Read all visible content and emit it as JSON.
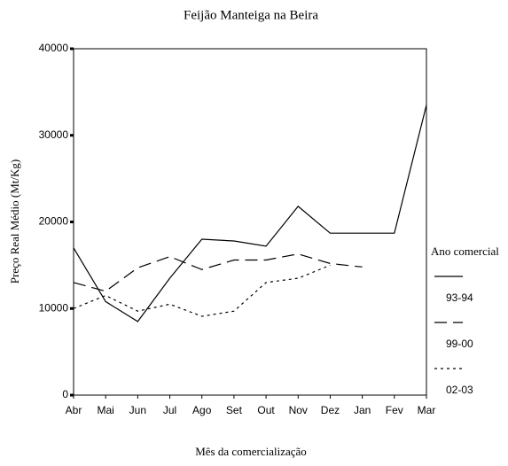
{
  "chart_data": {
    "type": "line",
    "title": "Feijão Manteiga na Beira",
    "x_label": "Mês da comercialização",
    "y_label": "Preço Real Médio (Mt/Kg)",
    "legend_title": "Ano comercial",
    "categories": [
      "Abr",
      "Mai",
      "Jun",
      "Jul",
      "Ago",
      "Set",
      "Out",
      "Nov",
      "Dez",
      "Jan",
      "Fev",
      "Mar"
    ],
    "series": [
      {
        "name": "93-94",
        "color": "#000000",
        "dash": "solid",
        "values": [
          17000,
          10800,
          8500,
          13500,
          18000,
          17800,
          17200,
          21800,
          18700,
          18700,
          18700,
          33500
        ]
      },
      {
        "name": "99-00",
        "color": "#000000",
        "dash": "dashed",
        "values": [
          13000,
          12000,
          14700,
          16000,
          14500,
          15600,
          15600,
          16300,
          15200,
          14800,
          null,
          null
        ]
      },
      {
        "name": "02-03",
        "color": "#000000",
        "dash": "dotted",
        "values": [
          10000,
          11500,
          9700,
          10500,
          9100,
          9700,
          13000,
          13500,
          15000,
          null,
          null,
          null
        ]
      }
    ],
    "ylim": [
      0,
      40000
    ],
    "yticks": [
      0,
      10000,
      20000,
      30000,
      40000
    ],
    "grid": false,
    "legend": "right"
  }
}
